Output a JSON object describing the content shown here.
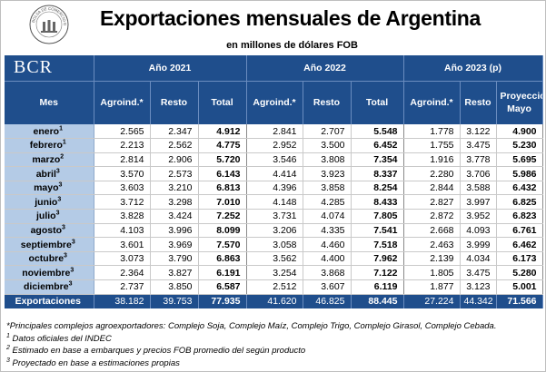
{
  "title": "Exportaciones mensuales de Argentina",
  "subtitle": "en millones de dólares FOB",
  "brand": "BCR",
  "logo_icon": "bolsa-de-comercio-seal-icon",
  "logo_text": "BOLSA DE COMERCIO DE ROSARIO",
  "colors": {
    "header": "#1f4e8c",
    "month_col": "#b4cbe6"
  },
  "headers": {
    "years": [
      "Año 2021",
      "Año 2022",
      "Año 2023 (p)"
    ],
    "mes": "Mes",
    "cols": [
      "Agroind.*",
      "Resto",
      "Total",
      "Agroind.*",
      "Resto",
      "Total",
      "Agroind.*",
      "Resto",
      "Proyección Mayo"
    ]
  },
  "rows": [
    {
      "mes": "enero",
      "sup": "1",
      "v": [
        "2.565",
        "2.347",
        "4.912",
        "2.841",
        "2.707",
        "5.548",
        "1.778",
        "3.122",
        "4.900"
      ]
    },
    {
      "mes": "febrero",
      "sup": "1",
      "v": [
        "2.213",
        "2.562",
        "4.775",
        "2.952",
        "3.500",
        "6.452",
        "1.755",
        "3.475",
        "5.230"
      ]
    },
    {
      "mes": "marzo",
      "sup": "2",
      "v": [
        "2.814",
        "2.906",
        "5.720",
        "3.546",
        "3.808",
        "7.354",
        "1.916",
        "3.778",
        "5.695"
      ]
    },
    {
      "mes": "abril",
      "sup": "3",
      "v": [
        "3.570",
        "2.573",
        "6.143",
        "4.414",
        "3.923",
        "8.337",
        "2.280",
        "3.706",
        "5.986"
      ]
    },
    {
      "mes": "mayo",
      "sup": "3",
      "v": [
        "3.603",
        "3.210",
        "6.813",
        "4.396",
        "3.858",
        "8.254",
        "2.844",
        "3.588",
        "6.432"
      ]
    },
    {
      "mes": "junio",
      "sup": "3",
      "v": [
        "3.712",
        "3.298",
        "7.010",
        "4.148",
        "4.285",
        "8.433",
        "2.827",
        "3.997",
        "6.825"
      ]
    },
    {
      "mes": "julio",
      "sup": "3",
      "v": [
        "3.828",
        "3.424",
        "7.252",
        "3.731",
        "4.074",
        "7.805",
        "2.872",
        "3.952",
        "6.823"
      ]
    },
    {
      "mes": "agosto",
      "sup": "3",
      "v": [
        "4.103",
        "3.996",
        "8.099",
        "3.206",
        "4.335",
        "7.541",
        "2.668",
        "4.093",
        "6.761"
      ]
    },
    {
      "mes": "septiembre",
      "sup": "3",
      "v": [
        "3.601",
        "3.969",
        "7.570",
        "3.058",
        "4.460",
        "7.518",
        "2.463",
        "3.999",
        "6.462"
      ]
    },
    {
      "mes": "octubre",
      "sup": "3",
      "v": [
        "3.073",
        "3.790",
        "6.863",
        "3.562",
        "4.400",
        "7.962",
        "2.139",
        "4.034",
        "6.173"
      ]
    },
    {
      "mes": "noviembre",
      "sup": "3",
      "v": [
        "2.364",
        "3.827",
        "6.191",
        "3.254",
        "3.868",
        "7.122",
        "1.805",
        "3.475",
        "5.280"
      ]
    },
    {
      "mes": "diciembre",
      "sup": "3",
      "v": [
        "2.737",
        "3.850",
        "6.587",
        "2.512",
        "3.607",
        "6.119",
        "1.877",
        "3.123",
        "5.001"
      ]
    }
  ],
  "total_row": {
    "label": "Exportaciones",
    "v": [
      "38.182",
      "39.753",
      "77.935",
      "41.620",
      "46.825",
      "88.445",
      "27.224",
      "44.342",
      "71.566"
    ]
  },
  "notes": [
    {
      "sup": "",
      "text": "*Principales complejos agroexportadores: Complejo Soja, Complejo Maíz, Complejo Trigo, Complejo Girasol, Complejo Cebada."
    },
    {
      "sup": "1",
      "text": " Datos oficiales del INDEC"
    },
    {
      "sup": "2",
      "text": " Estimado en base a embarques y precios FOB promedio del según producto"
    },
    {
      "sup": "3",
      "text": " Proyectado en base a estimaciones propias"
    }
  ]
}
